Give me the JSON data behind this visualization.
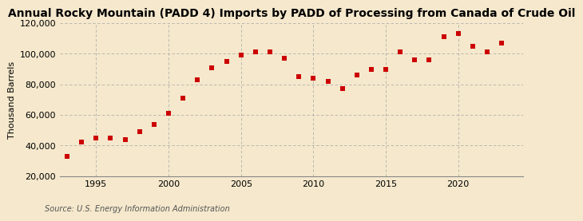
{
  "title": "Annual Rocky Mountain (PADD 4) Imports by PADD of Processing from Canada of Crude Oil",
  "ylabel": "Thousand Barrels",
  "source": "Source: U.S. Energy Information Administration",
  "background_color": "#f5e8cc",
  "marker_color": "#cc0000",
  "grid_color": "#aaaaaa",
  "years": [
    1993,
    1994,
    1995,
    1996,
    1997,
    1998,
    1999,
    2000,
    2001,
    2002,
    2003,
    2004,
    2005,
    2006,
    2007,
    2008,
    2009,
    2010,
    2011,
    2012,
    2013,
    2014,
    2015,
    2016,
    2017,
    2018,
    2019,
    2020,
    2021,
    2022,
    2023
  ],
  "values": [
    33000,
    42000,
    45000,
    45000,
    44000,
    49000,
    54000,
    61000,
    71000,
    83000,
    91000,
    95000,
    99000,
    101000,
    101000,
    97000,
    85000,
    84000,
    82000,
    77000,
    86000,
    90000,
    90000,
    101000,
    96000,
    96000,
    111000,
    113000,
    105000,
    101000,
    107000
  ],
  "xlim": [
    1992.5,
    2024.5
  ],
  "ylim": [
    20000,
    120000
  ],
  "yticks": [
    20000,
    40000,
    60000,
    80000,
    100000,
    120000
  ],
  "xticks": [
    1995,
    2000,
    2005,
    2010,
    2015,
    2020
  ],
  "title_fontsize": 10,
  "ylabel_fontsize": 8,
  "tick_fontsize": 8,
  "source_fontsize": 7
}
